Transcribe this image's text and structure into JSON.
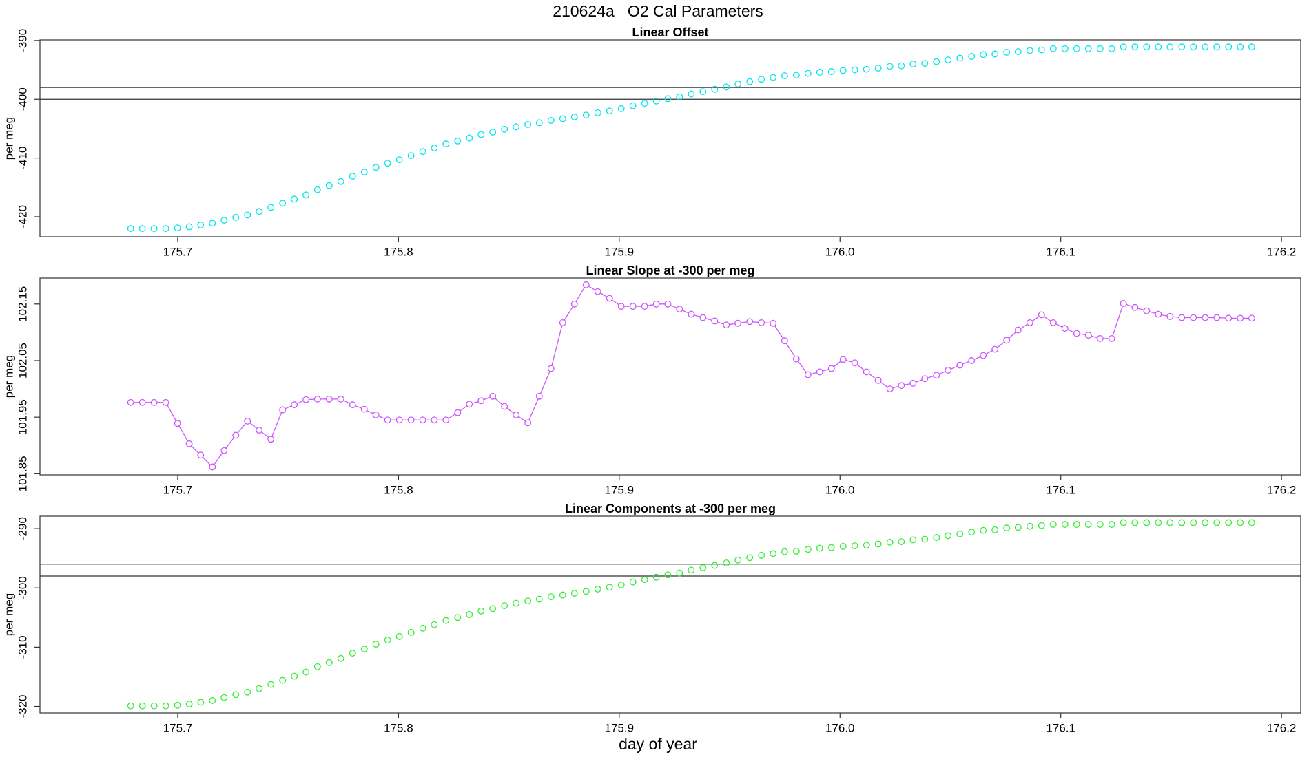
{
  "title": "210624a   O2 Cal Parameters",
  "xlabel": "day of year",
  "chart_data": [
    {
      "type": "scatter",
      "title": "Linear Offset",
      "ylabel": "per meg",
      "color": "#00e5ee",
      "xlim": [
        175.6376,
        176.2087
      ],
      "xticks": [
        175.7,
        175.8,
        175.9,
        {
          "value": 176,
          "label": "176.0"
        },
        176.1,
        176.2
      ],
      "ylim": [
        -423.4,
        -389.9
      ],
      "yticks": [
        -420,
        -410,
        -400,
        -390
      ],
      "hlines": [
        -398,
        -400
      ],
      "x": [
        175.6787,
        175.684,
        175.6893,
        175.6946,
        175.6999,
        175.7052,
        175.7104,
        175.7157,
        175.721,
        175.7263,
        175.7316,
        175.7369,
        175.7422,
        175.7475,
        175.7528,
        175.7581,
        175.7633,
        175.7686,
        175.7739,
        175.7792,
        175.7845,
        175.7898,
        175.7951,
        175.8004,
        175.8057,
        175.811,
        175.8162,
        175.8215,
        175.8268,
        175.8321,
        175.8374,
        175.8427,
        175.848,
        175.8533,
        175.8586,
        175.8638,
        175.8691,
        175.8744,
        175.8797,
        175.885,
        175.8903,
        175.8956,
        175.9009,
        175.9062,
        175.9115,
        175.9168,
        175.922,
        175.9273,
        175.9326,
        175.9379,
        175.9432,
        175.9485,
        175.9538,
        175.9591,
        175.9644,
        175.9697,
        175.9749,
        175.9802,
        175.9855,
        175.9908,
        175.9961,
        176.0014,
        176.0067,
        176.012,
        176.0173,
        176.0226,
        176.0278,
        176.0331,
        176.0384,
        176.0437,
        176.049,
        176.0543,
        176.0596,
        176.0649,
        176.0702,
        176.0755,
        176.0807,
        176.086,
        176.0913,
        176.0966,
        176.1019,
        176.1072,
        176.1125,
        176.1178,
        176.1231,
        176.1284,
        176.1336,
        176.1389,
        176.1442,
        176.1495,
        176.1548,
        176.1601,
        176.1654,
        176.1707,
        176.176,
        176.1813,
        176.1865
      ],
      "values": [
        -422.0,
        -422.0,
        -422.0,
        -422.0,
        -421.9,
        -421.7,
        -421.4,
        -421.1,
        -420.6,
        -420.1,
        -419.7,
        -419.1,
        -418.4,
        -417.7,
        -417.0,
        -416.3,
        -415.4,
        -414.7,
        -414.0,
        -413.1,
        -412.4,
        -411.6,
        -410.9,
        -410.3,
        -409.6,
        -408.9,
        -408.3,
        -407.6,
        -407.1,
        -406.6,
        -406.0,
        -405.6,
        -405.1,
        -404.7,
        -404.3,
        -404.0,
        -403.6,
        -403.3,
        -403.0,
        -402.7,
        -402.3,
        -402.0,
        -401.6,
        -401.1,
        -400.7,
        -400.3,
        -399.9,
        -399.6,
        -399.1,
        -398.7,
        -398.3,
        -397.9,
        -397.4,
        -397.0,
        -396.6,
        -396.3,
        -396.0,
        -395.9,
        -395.6,
        -395.4,
        -395.3,
        -395.1,
        -395.0,
        -394.9,
        -394.7,
        -394.4,
        -394.3,
        -394.0,
        -393.9,
        -393.6,
        -393.3,
        -393.0,
        -392.7,
        -392.4,
        -392.3,
        -392.0,
        -391.9,
        -391.7,
        -391.6,
        -391.4,
        -391.4,
        -391.4,
        -391.4,
        -391.4,
        -391.4,
        -391.1,
        -391.1,
        -391.1,
        -391.1,
        -391.1,
        -391.1,
        -391.1,
        -391.1,
        -391.1,
        -391.1,
        -391.1,
        -391.1
      ]
    },
    {
      "type": "line",
      "title": "Linear Slope at -300 per meg",
      "ylabel": "per meg",
      "color": "#cc55ff",
      "xlim": [
        175.6376,
        176.2087
      ],
      "xticks": [
        175.7,
        175.8,
        175.9,
        {
          "value": 176,
          "label": "176.0"
        },
        176.1,
        176.2
      ],
      "ylim": [
        101.848,
        102.196
      ],
      "yticks": [
        101.85,
        101.95,
        102.05,
        102.15
      ],
      "x": [
        175.6787,
        175.684,
        175.6893,
        175.6946,
        175.6999,
        175.7052,
        175.7104,
        175.7157,
        175.721,
        175.7263,
        175.7316,
        175.7369,
        175.7422,
        175.7475,
        175.7528,
        175.7581,
        175.7633,
        175.7686,
        175.7739,
        175.7792,
        175.7845,
        175.7898,
        175.7951,
        175.8004,
        175.8057,
        175.811,
        175.8162,
        175.8215,
        175.8268,
        175.8321,
        175.8374,
        175.8427,
        175.848,
        175.8533,
        175.8586,
        175.8638,
        175.8691,
        175.8744,
        175.8797,
        175.885,
        175.8903,
        175.8956,
        175.9009,
        175.9062,
        175.9115,
        175.9168,
        175.922,
        175.9273,
        175.9326,
        175.9379,
        175.9432,
        175.9485,
        175.9538,
        175.9591,
        175.9644,
        175.9697,
        175.9749,
        175.9802,
        175.9855,
        175.9908,
        175.9961,
        176.0014,
        176.0067,
        176.012,
        176.0173,
        176.0226,
        176.0278,
        176.0331,
        176.0384,
        176.0437,
        176.049,
        176.0543,
        176.0596,
        176.0649,
        176.0702,
        176.0755,
        176.0807,
        176.086,
        176.0913,
        176.0966,
        176.1019,
        176.1072,
        176.1125,
        176.1178,
        176.1231,
        176.1284,
        176.1336,
        176.1389,
        176.1442,
        176.1495,
        176.1548,
        176.1601,
        176.1654,
        176.1707,
        176.176,
        176.1813,
        176.1865
      ],
      "values": [
        101.976,
        101.976,
        101.976,
        101.976,
        101.939,
        101.903,
        101.883,
        101.862,
        101.891,
        101.918,
        101.943,
        101.927,
        101.911,
        101.963,
        101.972,
        101.981,
        101.982,
        101.982,
        101.982,
        101.972,
        101.964,
        101.954,
        101.945,
        101.945,
        101.945,
        101.945,
        101.945,
        101.945,
        101.958,
        101.973,
        101.979,
        101.987,
        101.969,
        101.954,
        101.94,
        101.987,
        102.036,
        102.117,
        102.15,
        102.184,
        102.172,
        102.16,
        102.146,
        102.146,
        102.146,
        102.15,
        102.15,
        102.141,
        102.132,
        102.126,
        102.12,
        102.113,
        102.116,
        102.119,
        102.117,
        102.116,
        102.085,
        102.053,
        102.025,
        102.03,
        102.036,
        102.052,
        102.046,
        102.03,
        102.015,
        102.0,
        102.006,
        102.01,
        102.018,
        102.024,
        102.033,
        102.042,
        102.05,
        102.059,
        102.07,
        102.086,
        102.104,
        102.117,
        102.131,
        102.117,
        102.107,
        102.098,
        102.095,
        102.089,
        102.089,
        102.151,
        102.144,
        102.138,
        102.132,
        102.128,
        102.126,
        102.126,
        102.126,
        102.126,
        102.125,
        102.125,
        102.125
      ]
    },
    {
      "type": "scatter",
      "title": "Linear Components at -300 per meg",
      "ylabel": "per meg",
      "color": "#33ee33",
      "xlim": [
        175.6376,
        176.2087
      ],
      "xticks": [
        175.7,
        175.8,
        175.9,
        {
          "value": 176,
          "label": "176.0"
        },
        176.1,
        176.2
      ],
      "ylim": [
        -321.1,
        -287.9
      ],
      "yticks": [
        -320,
        -310,
        -300,
        -290
      ],
      "hlines": [
        -296,
        -298
      ],
      "x": [
        175.6787,
        175.684,
        175.6893,
        175.6946,
        175.6999,
        175.7052,
        175.7104,
        175.7157,
        175.721,
        175.7263,
        175.7316,
        175.7369,
        175.7422,
        175.7475,
        175.7528,
        175.7581,
        175.7633,
        175.7686,
        175.7739,
        175.7792,
        175.7845,
        175.7898,
        175.7951,
        175.8004,
        175.8057,
        175.811,
        175.8162,
        175.8215,
        175.8268,
        175.8321,
        175.8374,
        175.8427,
        175.848,
        175.8533,
        175.8586,
        175.8638,
        175.8691,
        175.8744,
        175.8797,
        175.885,
        175.8903,
        175.8956,
        175.9009,
        175.9062,
        175.9115,
        175.9168,
        175.922,
        175.9273,
        175.9326,
        175.9379,
        175.9432,
        175.9485,
        175.9538,
        175.9591,
        175.9644,
        175.9697,
        175.9749,
        175.9802,
        175.9855,
        175.9908,
        175.9961,
        176.0014,
        176.0067,
        176.012,
        176.0173,
        176.0226,
        176.0278,
        176.0331,
        176.0384,
        176.0437,
        176.049,
        176.0543,
        176.0596,
        176.0649,
        176.0702,
        176.0755,
        176.0807,
        176.086,
        176.0913,
        176.0966,
        176.1019,
        176.1072,
        176.1125,
        176.1178,
        176.1231,
        176.1284,
        176.1336,
        176.1389,
        176.1442,
        176.1495,
        176.1548,
        176.1601,
        176.1654,
        176.1707,
        176.176,
        176.1813,
        176.1865
      ],
      "values": [
        -319.9,
        -319.9,
        -319.9,
        -319.9,
        -319.8,
        -319.6,
        -319.3,
        -319.0,
        -318.5,
        -318.0,
        -317.6,
        -317.0,
        -316.3,
        -315.6,
        -314.9,
        -314.2,
        -313.3,
        -312.6,
        -311.9,
        -311.0,
        -310.3,
        -309.5,
        -308.8,
        -308.2,
        -307.5,
        -306.8,
        -306.2,
        -305.5,
        -305.0,
        -304.5,
        -303.9,
        -303.5,
        -303.0,
        -302.6,
        -302.2,
        -301.9,
        -301.5,
        -301.2,
        -300.9,
        -300.6,
        -300.2,
        -299.9,
        -299.5,
        -299.0,
        -298.6,
        -298.2,
        -297.8,
        -297.5,
        -297.0,
        -296.6,
        -296.2,
        -295.8,
        -295.3,
        -294.9,
        -294.5,
        -294.2,
        -293.9,
        -293.8,
        -293.5,
        -293.3,
        -293.2,
        -293.0,
        -292.9,
        -292.8,
        -292.6,
        -292.3,
        -292.2,
        -291.9,
        -291.8,
        -291.5,
        -291.2,
        -290.9,
        -290.6,
        -290.3,
        -290.2,
        -289.9,
        -289.8,
        -289.6,
        -289.5,
        -289.3,
        -289.3,
        -289.3,
        -289.3,
        -289.3,
        -289.3,
        -289.0,
        -289.0,
        -289.0,
        -289.0,
        -289.0,
        -289.0,
        -289.0,
        -289.0,
        -289.0,
        -289.0,
        -289.0,
        -289.0
      ]
    }
  ]
}
